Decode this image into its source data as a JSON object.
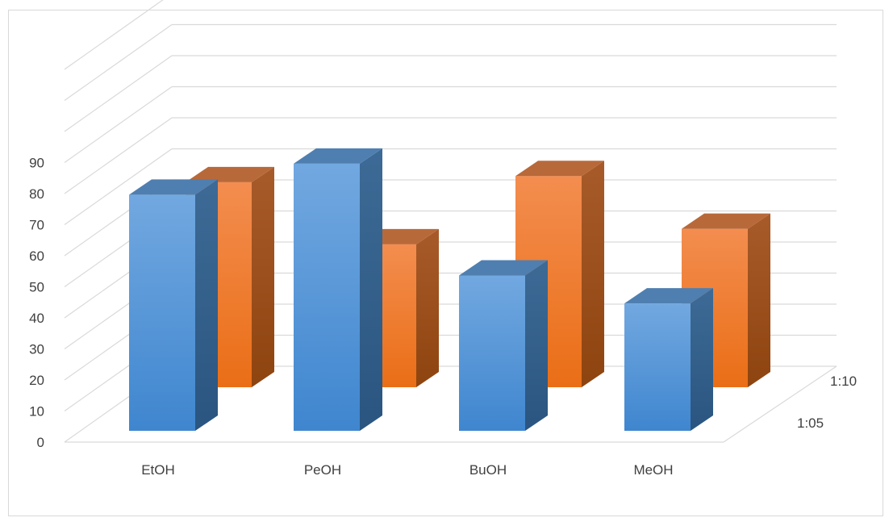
{
  "chart_data": {
    "type": "bar",
    "subtype": "3d-clustered-column",
    "title": "",
    "xlabel": "",
    "ylabel": "",
    "categories": [
      "EtOH",
      "PeOH",
      "BuOH",
      "MeOH"
    ],
    "series": [
      {
        "name": "1:05",
        "values": [
          76,
          86,
          50,
          41
        ]
      },
      {
        "name": "1:10",
        "values": [
          66,
          46,
          68,
          51
        ]
      }
    ],
    "y_ticks": [
      "0",
      "10",
      "20",
      "30",
      "40",
      "50",
      "60",
      "70",
      "80",
      "90"
    ],
    "ylim": [
      0,
      90
    ],
    "grid": true,
    "legend": "none",
    "colors": {
      "series_front": "#5b9bd5",
      "series_back": "#ed7d31",
      "grid": "#d9d9d9",
      "text": "#404040"
    }
  }
}
